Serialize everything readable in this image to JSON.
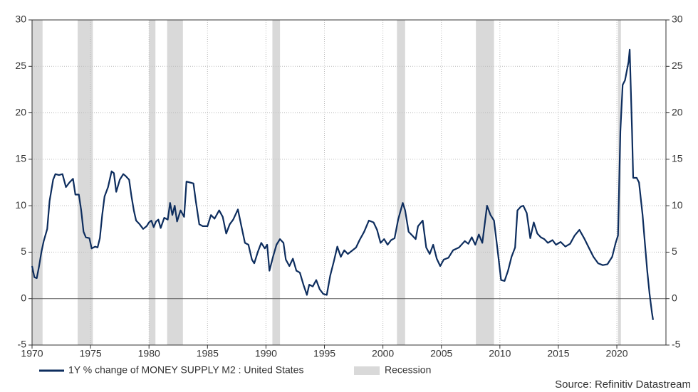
{
  "chart_data": {
    "type": "line",
    "source": "Source: Refinitiv Datastream",
    "xlim": [
      1970,
      2024.2
    ],
    "xticks": [
      1970,
      1975,
      1980,
      1985,
      1990,
      1995,
      2000,
      2005,
      2010,
      2015,
      2020
    ],
    "ylim": [
      -5,
      30
    ],
    "yticks": [
      -5,
      0,
      5,
      10,
      15,
      20,
      25,
      30
    ],
    "grid": true,
    "shaded_regions": {
      "name": "Recession",
      "color": "#d9d9d9",
      "ranges": [
        [
          1969.95,
          1970.9
        ],
        [
          1973.9,
          1975.2
        ],
        [
          1980.0,
          1980.55
        ],
        [
          1981.55,
          1982.9
        ],
        [
          1990.55,
          1991.2
        ],
        [
          2001.2,
          2001.9
        ],
        [
          2007.95,
          2009.5
        ],
        [
          2020.1,
          2020.35
        ]
      ]
    },
    "x": [
      1970.0,
      1970.2,
      1970.4,
      1970.6,
      1970.8,
      1971.0,
      1971.3,
      1971.5,
      1971.8,
      1972.0,
      1972.3,
      1972.6,
      1972.9,
      1973.2,
      1973.5,
      1973.7,
      1974.0,
      1974.2,
      1974.4,
      1974.6,
      1974.9,
      1975.1,
      1975.4,
      1975.6,
      1975.8,
      1976.0,
      1976.2,
      1976.5,
      1976.8,
      1977.0,
      1977.2,
      1977.5,
      1977.8,
      1978.0,
      1978.3,
      1978.5,
      1978.7,
      1978.9,
      1979.2,
      1979.5,
      1979.8,
      1980.0,
      1980.2,
      1980.4,
      1980.6,
      1980.8,
      1981.0,
      1981.3,
      1981.6,
      1981.8,
      1982.0,
      1982.2,
      1982.4,
      1982.7,
      1983.0,
      1983.2,
      1983.5,
      1983.8,
      1984.0,
      1984.3,
      1984.6,
      1985.0,
      1985.3,
      1985.6,
      1986.0,
      1986.3,
      1986.6,
      1986.9,
      1987.2,
      1987.6,
      1987.9,
      1988.2,
      1988.5,
      1988.8,
      1989.0,
      1989.3,
      1989.6,
      1989.9,
      1990.1,
      1990.3,
      1990.6,
      1990.9,
      1991.2,
      1991.5,
      1991.7,
      1992.0,
      1992.3,
      1992.6,
      1992.9,
      1993.2,
      1993.5,
      1993.7,
      1994.0,
      1994.3,
      1994.6,
      1994.9,
      1995.2,
      1995.5,
      1995.8,
      1996.1,
      1996.4,
      1996.7,
      1997.0,
      1997.3,
      1997.7,
      1998.0,
      1998.4,
      1998.8,
      1999.2,
      1999.5,
      1999.8,
      2000.1,
      2000.4,
      2000.7,
      2001.0,
      2001.3,
      2001.7,
      2001.9,
      2002.2,
      2002.5,
      2002.8,
      2003.0,
      2003.4,
      2003.7,
      2004.0,
      2004.3,
      2004.6,
      2004.9,
      2005.2,
      2005.6,
      2006.0,
      2006.5,
      2007.0,
      2007.3,
      2007.6,
      2007.9,
      2008.2,
      2008.5,
      2008.9,
      2009.2,
      2009.5,
      2009.8,
      2010.1,
      2010.4,
      2010.7,
      2011.0,
      2011.3,
      2011.5,
      2011.8,
      2012.0,
      2012.3,
      2012.6,
      2012.9,
      2013.2,
      2013.5,
      2013.8,
      2014.1,
      2014.5,
      2014.8,
      2015.2,
      2015.6,
      2016.0,
      2016.4,
      2016.8,
      2017.2,
      2017.6,
      2018.0,
      2018.4,
      2018.8,
      2019.2,
      2019.6,
      2019.9,
      2020.1,
      2020.3,
      2020.5,
      2020.7,
      2021.0,
      2021.1,
      2021.3,
      2021.4,
      2021.7,
      2021.9,
      2022.2,
      2022.4,
      2022.6,
      2022.8,
      2023.0,
      2023.1
    ],
    "series": [
      {
        "name": "1Y % change of MONEY SUPPLY M2 : United States",
        "color": "#0d2d5e",
        "values": [
          3.5,
          2.3,
          2.2,
          3.5,
          5.0,
          6.2,
          7.5,
          10.5,
          12.8,
          13.4,
          13.3,
          13.4,
          12.0,
          12.5,
          12.9,
          11.2,
          11.2,
          9.5,
          7.2,
          6.6,
          6.5,
          5.4,
          5.6,
          5.5,
          6.5,
          9.0,
          11.0,
          12.0,
          13.7,
          13.5,
          11.5,
          12.8,
          13.4,
          13.2,
          12.8,
          11.0,
          9.5,
          8.4,
          8.0,
          7.5,
          7.8,
          8.2,
          8.4,
          7.7,
          8.3,
          8.5,
          7.6,
          8.7,
          8.5,
          10.3,
          9.0,
          10.0,
          8.3,
          9.5,
          8.8,
          12.6,
          12.5,
          12.4,
          10.5,
          8.0,
          7.8,
          7.8,
          9.0,
          8.6,
          9.5,
          8.8,
          7.0,
          8.0,
          8.5,
          9.6,
          7.8,
          6.0,
          5.8,
          4.2,
          3.8,
          5.0,
          6.0,
          5.4,
          5.8,
          3.0,
          4.5,
          5.8,
          6.4,
          6.0,
          4.2,
          3.5,
          4.3,
          3.0,
          2.8,
          1.5,
          0.4,
          1.5,
          1.3,
          2.0,
          1.0,
          0.5,
          0.4,
          2.5,
          4.0,
          5.6,
          4.5,
          5.2,
          4.8,
          5.1,
          5.5,
          6.3,
          7.2,
          8.4,
          8.2,
          7.4,
          6.0,
          6.4,
          5.8,
          6.3,
          6.5,
          8.5,
          10.3,
          9.5,
          7.2,
          6.8,
          6.4,
          7.8,
          8.4,
          5.5,
          4.8,
          5.8,
          4.3,
          3.5,
          4.2,
          4.4,
          5.2,
          5.5,
          6.2,
          5.9,
          6.6,
          5.8,
          6.9,
          6.0,
          10.0,
          9.0,
          8.4,
          5.3,
          2.0,
          1.9,
          3.0,
          4.5,
          5.5,
          9.5,
          9.9,
          10.0,
          9.2,
          6.5,
          8.2,
          7.0,
          6.6,
          6.4,
          6.0,
          6.3,
          5.8,
          6.1,
          5.6,
          5.9,
          6.8,
          7.4,
          6.5,
          5.5,
          4.5,
          3.8,
          3.6,
          3.7,
          4.5,
          6.0,
          6.8,
          18.0,
          23.0,
          23.5,
          25.5,
          26.8,
          18.0,
          13.0,
          13.0,
          12.5,
          9.0,
          6.0,
          3.0,
          0.5,
          -1.5,
          -2.3
        ]
      }
    ]
  }
}
